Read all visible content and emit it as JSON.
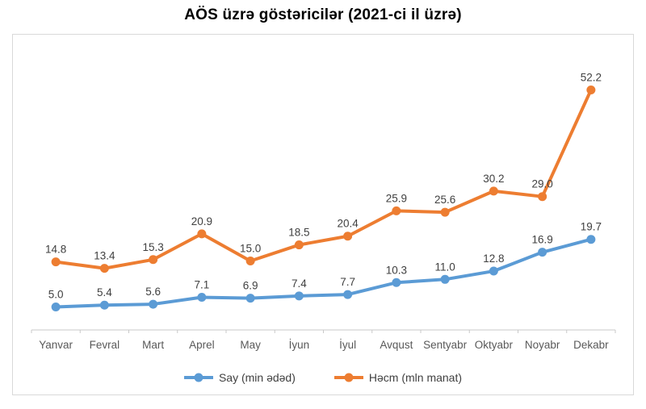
{
  "page": {
    "title": "AÖS üzrə göstəricilər (2021-ci il üzrə)"
  },
  "chart_data": {
    "type": "line",
    "title": "AÖS üzrə göstəricilər (2021-ci il üzrə)",
    "categories": [
      "Yanvar",
      "Fevral",
      "Mart",
      "Aprel",
      "May",
      "İyun",
      "İyul",
      "Avqust",
      "Sentyabr",
      "Oktyabr",
      "Noyabr",
      "Dekabr"
    ],
    "series": [
      {
        "name": "Say (min ədəd)",
        "color": "#5B9BD5",
        "values": [
          5.0,
          5.4,
          5.6,
          7.1,
          6.9,
          7.4,
          7.7,
          10.3,
          11.0,
          12.8,
          16.9,
          19.7
        ]
      },
      {
        "name": "Həcm (mln manat)",
        "color": "#ED7D31",
        "values": [
          14.8,
          13.4,
          15.3,
          20.9,
          15.0,
          18.5,
          20.4,
          25.9,
          25.6,
          30.2,
          29.0,
          52.2
        ]
      }
    ],
    "ylim": [
      0,
      60
    ],
    "grid": false,
    "legend_position": "bottom",
    "data_labels": true,
    "data_label_decimals": 1,
    "axis_color": "#C9C9C9",
    "data_label_color": "#404040",
    "category_label_color": "#595959",
    "frame_border_color": "#D9D9D9"
  }
}
